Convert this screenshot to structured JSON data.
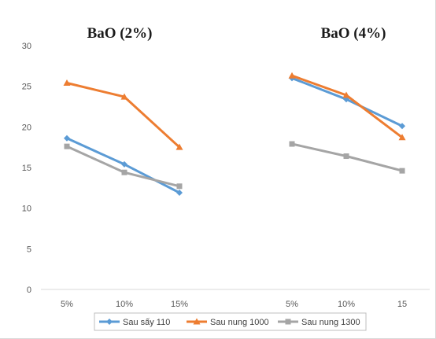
{
  "chart_data": {
    "type": "line",
    "ylim": [
      0,
      30
    ],
    "y_ticks": [
      "0",
      "5",
      "10",
      "15",
      "20",
      "25",
      "30"
    ],
    "grid": false,
    "legend_position": "bottom",
    "panels": [
      {
        "title": "BaO (2%)",
        "categories": [
          "5%",
          "10%",
          "15%"
        ],
        "series": [
          {
            "name": "Sau sấy 110",
            "values": [
              18.6,
              15.4,
              11.9
            ]
          },
          {
            "name": "Sau nung 1000",
            "values": [
              25.4,
              23.7,
              17.5
            ]
          },
          {
            "name": "Sau nung 1300",
            "values": [
              17.6,
              14.4,
              12.7
            ]
          }
        ]
      },
      {
        "title": "BaO (4%)",
        "categories": [
          "5%",
          "10%",
          "15"
        ],
        "series": [
          {
            "name": "Sau sấy 110",
            "values": [
              26.0,
              23.4,
              20.1
            ]
          },
          {
            "name": "Sau nung 1000",
            "values": [
              26.3,
              23.9,
              18.7
            ]
          },
          {
            "name": "Sau nung 1300",
            "values": [
              17.9,
              16.4,
              14.6
            ]
          }
        ]
      }
    ],
    "colors": [
      "#5b9bd5",
      "#ed7d31",
      "#a5a5a5"
    ],
    "markers": [
      "diamond",
      "triangle",
      "square"
    ]
  }
}
